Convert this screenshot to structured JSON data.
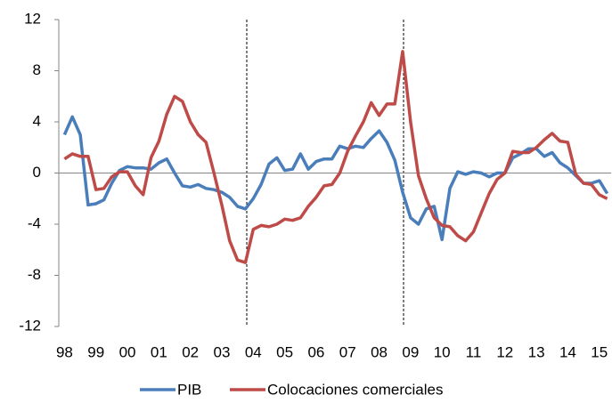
{
  "chart_data": {
    "type": "line",
    "categories": [
      "98",
      null,
      null,
      null,
      "99",
      null,
      null,
      null,
      "00",
      null,
      null,
      null,
      "01",
      null,
      null,
      null,
      "02",
      null,
      null,
      null,
      "03",
      null,
      null,
      null,
      "04",
      null,
      null,
      null,
      "05",
      null,
      null,
      null,
      "06",
      null,
      null,
      null,
      "07",
      null,
      null,
      null,
      "08",
      null,
      null,
      null,
      "09",
      null,
      null,
      null,
      "10",
      null,
      null,
      null,
      "11",
      null,
      null,
      null,
      "12",
      null,
      null,
      null,
      "13",
      null,
      null,
      null,
      "14",
      null,
      null,
      null,
      "15",
      null
    ],
    "series": [
      {
        "name": "PIB",
        "color": "#4a7ebb",
        "values": [
          3.0,
          4.4,
          3.0,
          -2.5,
          -2.4,
          -2.1,
          -0.8,
          0.2,
          0.5,
          0.4,
          0.4,
          0.3,
          0.8,
          1.1,
          0.0,
          -1.0,
          -1.1,
          -0.9,
          -1.2,
          -1.3,
          -1.5,
          -1.9,
          -2.6,
          -2.8,
          -2.0,
          -0.9,
          0.7,
          1.2,
          0.2,
          0.3,
          1.5,
          0.3,
          0.9,
          1.1,
          1.1,
          2.1,
          1.9,
          2.1,
          2.0,
          2.7,
          3.3,
          2.4,
          1.0,
          -1.5,
          -3.5,
          -4.0,
          -2.8,
          -2.6,
          -5.2,
          -1.2,
          0.1,
          -0.1,
          0.1,
          0.0,
          -0.3,
          0.0,
          0.0,
          1.2,
          1.5,
          1.9,
          1.9,
          1.3,
          1.6,
          0.8,
          0.4,
          -0.2,
          -0.8,
          -0.8,
          -0.6,
          -1.6
        ]
      },
      {
        "name": "Colocaciones comerciales",
        "color": "#be4b48",
        "values": [
          1.1,
          1.5,
          1.3,
          1.3,
          -1.3,
          -1.2,
          -0.3,
          0.1,
          0.1,
          -1.0,
          -1.7,
          1.2,
          2.5,
          4.6,
          6.0,
          5.6,
          4.0,
          3.0,
          2.4,
          0.0,
          -2.5,
          -5.3,
          -6.8,
          -7.0,
          -4.4,
          -4.1,
          -4.2,
          -4.0,
          -3.6,
          -3.7,
          -3.5,
          -2.6,
          -1.9,
          -1.0,
          -0.9,
          0.0,
          1.7,
          2.9,
          4.0,
          5.5,
          4.5,
          5.4,
          5.4,
          9.5,
          4.0,
          -0.2,
          -2.0,
          -3.5,
          -4.1,
          -4.2,
          -4.9,
          -5.3,
          -4.6,
          -3.1,
          -1.6,
          -0.5,
          0.0,
          1.7,
          1.6,
          1.6,
          2.0,
          2.6,
          3.1,
          2.5,
          2.4,
          -0.1,
          -0.8,
          -0.9,
          -1.7,
          -2.0
        ]
      }
    ],
    "ylim": [
      -12,
      12
    ],
    "yticks": [
      -12,
      -8,
      -4,
      0,
      4,
      8,
      12
    ],
    "grid": false,
    "legend": "bottom"
  }
}
